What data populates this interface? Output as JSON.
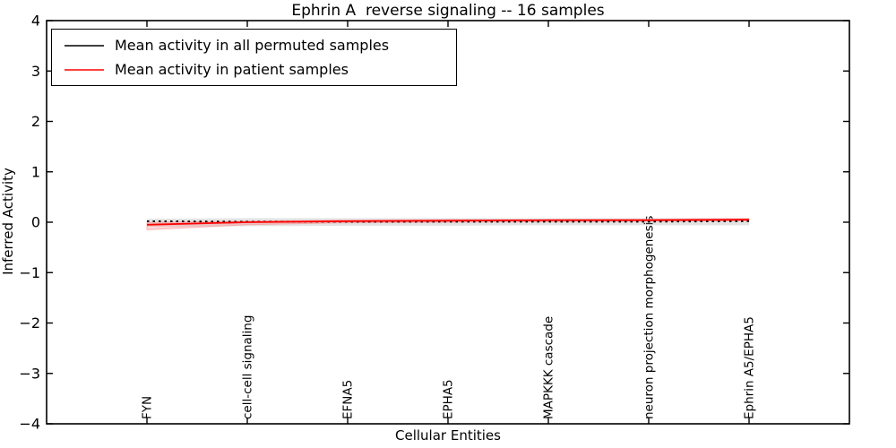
{
  "chart_data": {
    "type": "line",
    "title": "Ephrin A  reverse signaling -- 16 samples",
    "xlabel": "Cellular Entities",
    "ylabel": "Inferred Activity",
    "ylim": [
      -4,
      4
    ],
    "ytick_values": [
      4,
      3,
      2,
      1,
      0,
      -1,
      -2,
      -3,
      -4
    ],
    "ytick_labels": [
      "4",
      "3",
      "2",
      "1",
      "0",
      "−1",
      "−2",
      "−3",
      "−4"
    ],
    "categories": [
      "FYN",
      "cell-cell signaling",
      "EFNA5",
      "EPHA5",
      "MAPKKK cascade",
      "neuron projection morphogenesis",
      "Ephrin A5/EPHA5"
    ],
    "grid": false,
    "legend_position": "upper left",
    "series": [
      {
        "name": "Mean activity in all permuted samples",
        "color": "#000000",
        "style": "dotted",
        "values": [
          0.02,
          0.01,
          0.01,
          0.01,
          0.01,
          0.01,
          0.02
        ]
      },
      {
        "name": "Mean activity in patient samples",
        "color": "#ff0000",
        "style": "solid",
        "values": [
          -0.05,
          0.0,
          0.02,
          0.03,
          0.04,
          0.04,
          0.05
        ]
      }
    ],
    "bands": [
      {
        "name": "permuted-activity-range",
        "fill": "#999999",
        "opacity": 0.28,
        "upper": [
          0.07,
          0.08,
          0.08,
          0.08,
          0.08,
          0.08,
          0.08
        ],
        "lower": [
          -0.09,
          -0.08,
          -0.07,
          -0.07,
          -0.06,
          -0.06,
          -0.06
        ]
      },
      {
        "name": "patient-activity-range",
        "fill": "#ff7777",
        "opacity": 0.3,
        "stroke": "#ff8888",
        "upper": [
          0.0,
          0.02,
          0.04,
          0.05,
          0.05,
          0.06,
          0.07
        ],
        "lower": [
          -0.15,
          -0.05,
          -0.01,
          0.0,
          0.01,
          0.02,
          0.03
        ]
      }
    ],
    "axis_color": "#000000",
    "background": "#ffffff"
  }
}
